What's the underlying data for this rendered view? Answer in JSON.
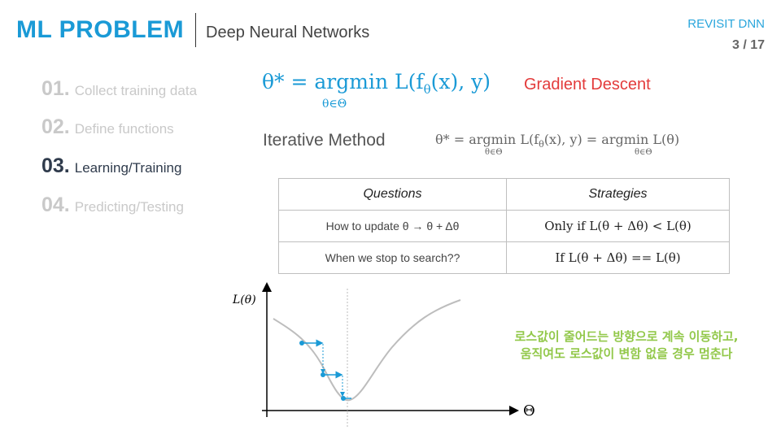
{
  "header": {
    "title": "ML PROBLEM",
    "subtitle": "Deep Neural Networks",
    "section": "REVISIT DNN",
    "page": "3 / 17"
  },
  "steps": [
    {
      "num": "01.",
      "label": "Collect training data",
      "active": false
    },
    {
      "num": "02.",
      "label": "Define functions",
      "active": false
    },
    {
      "num": "03.",
      "label": "Learning/Training",
      "active": true
    },
    {
      "num": "04.",
      "label": "Predicting/Testing",
      "active": false
    }
  ],
  "main_equation": {
    "lhs": "θ* = argmin L(f",
    "rhs_sub": "θ",
    "rhs_end": "(x), y)",
    "under": "θ∈Θ"
  },
  "gradient_label": "Gradient Descent",
  "iterative": {
    "label": "Iterative Method",
    "equation_part1": "θ* = argmin L(f",
    "equation_sub": "θ",
    "equation_part2": "(x), y) = argmin L(θ)",
    "under": "θ∈Θ"
  },
  "table": {
    "headers": [
      "Questions",
      "Strategies"
    ],
    "rows": [
      {
        "question": "How to update θ → θ + Δθ",
        "strategy": "Only if L(θ + Δθ) < L(θ)"
      },
      {
        "question": "When we stop to search??",
        "strategy": "If L(θ + Δθ) == L(θ)"
      }
    ]
  },
  "plot": {
    "ylabel": "L(θ)",
    "xlabel": "Θ",
    "colors": {
      "curve": "#bdbdbd",
      "steps": "#1a9ad6",
      "axis": "#000000"
    }
  },
  "note": {
    "line1": "로스값이 줄어드는 방향으로 계속 이동하고,",
    "line2": "움직여도 로스값이 변함 없을 경우 멈춘다"
  }
}
